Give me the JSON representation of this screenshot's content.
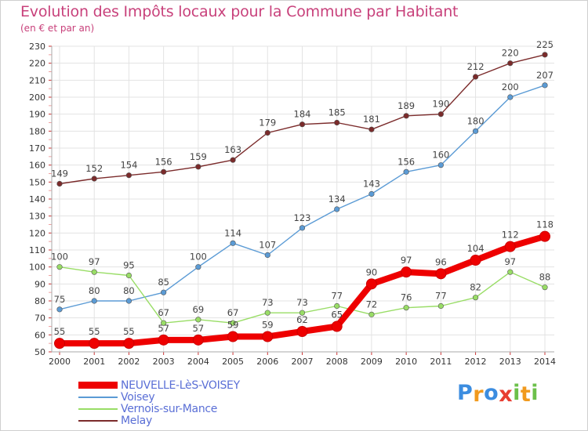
{
  "chart_data": {
    "type": "line",
    "title": "Evolution des Impôts locaux pour la Commune par Habitant",
    "subtitle": "(en € et par an)",
    "x": [
      2000,
      2001,
      2002,
      2003,
      2004,
      2005,
      2006,
      2007,
      2008,
      2009,
      2010,
      2011,
      2012,
      2013,
      2014
    ],
    "ylim": [
      50,
      230
    ],
    "yticks": [
      50,
      60,
      70,
      80,
      90,
      100,
      110,
      120,
      130,
      140,
      150,
      160,
      170,
      180,
      190,
      200,
      210,
      220,
      230
    ],
    "grid": true,
    "legend_position": "bottom-left",
    "series": [
      {
        "name": "NEUVELLE-LèS-VOISEY",
        "color": "#ee0000",
        "values": [
          55,
          55,
          55,
          57,
          57,
          59,
          59,
          62,
          65,
          90,
          97,
          96,
          104,
          112,
          118
        ]
      },
      {
        "name": "Voisey",
        "color": "#5b9bd5",
        "values": [
          75,
          80,
          80,
          85,
          100,
          114,
          107,
          123,
          134,
          143,
          156,
          160,
          180,
          200,
          207
        ]
      },
      {
        "name": "Vernois-sur-Mance",
        "color": "#99dd66",
        "values": [
          100,
          97,
          95,
          67,
          69,
          67,
          73,
          73,
          77,
          72,
          76,
          77,
          82,
          97,
          88
        ]
      },
      {
        "name": "Melay",
        "color": "#7b2b2b",
        "values": [
          149,
          152,
          154,
          156,
          159,
          163,
          179,
          184,
          185,
          181,
          189,
          190,
          212,
          220,
          225
        ]
      }
    ]
  },
  "logo": {
    "text": "Proxiti",
    "letters": [
      "P",
      "r",
      "o",
      "x",
      "i",
      "t",
      "i"
    ],
    "colors": [
      "#3c8de0",
      "#f19a1e",
      "#3c8de0",
      "#e83e32",
      "#6cc04a",
      "#f19a1e",
      "#6cc04a"
    ]
  }
}
